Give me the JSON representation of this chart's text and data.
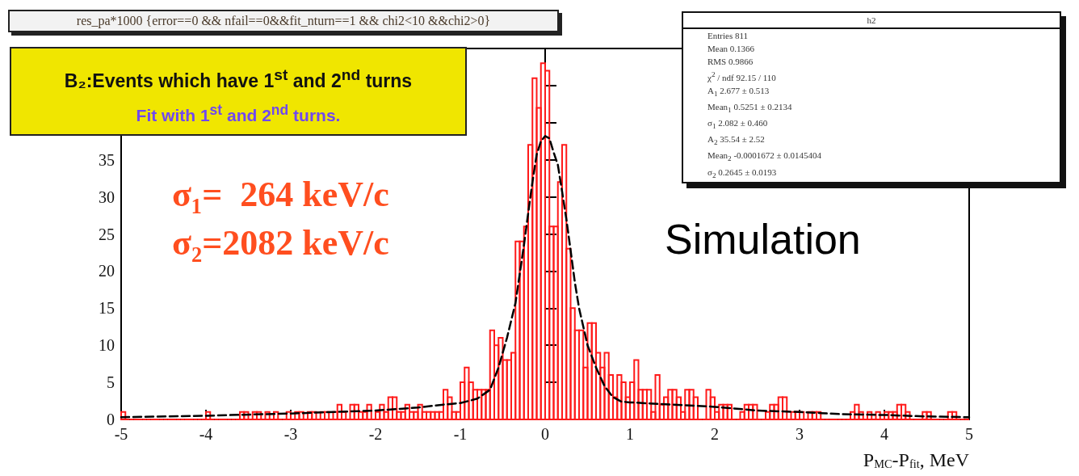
{
  "chart_data": {
    "type": "histogram",
    "title": "res_pa*1000 {error==0 && nfail==0&&fit_nturn==1 && chi2<10 &&chi2>0}",
    "xlabel": "P$_{MC}$-P$_{fit}$, MeV",
    "annotations": [
      "B₂:Events which have 1$^{st}$ and 2$^{nd}$ turns",
      "Fit with 1$^{st}$ and 2$^{nd}$ turns.",
      "σ₁=  264 keV/c",
      "σ₂=2082 keV/c",
      "Simulation",
      "h2",
      "Entries 811",
      "Mean 0.1366",
      "RMS 0.9866",
      "χ$^{2}$ / ndf 92.15 / 110",
      "A$_{1}$ 2.677 ± 0.513",
      "Mean$_{1}$ 0.5251 ± 0.2134",
      "σ$_{1}$ 2.082 ± 0.460",
      "A$_{2}$ 35.54 ± 2.52",
      "Mean$_{2}$ -0.0001672 ± 0.0145404",
      "σ$_{2}$ 0.2645 ± 0.0193"
    ],
    "bins": [
      -5,
      -4.95,
      -4.9,
      -4.85,
      -4.8,
      -4.75,
      -4.7,
      -4.65,
      -4.6,
      -4.55,
      -4.5,
      -4.45,
      -4.4,
      -4.35,
      -4.3,
      -4.25,
      -4.2,
      -4.15,
      -4.1,
      -4.05,
      -4,
      -3.95,
      -3.9,
      -3.85,
      -3.8,
      -3.75,
      -3.7,
      -3.65,
      -3.6,
      -3.55,
      -3.5,
      -3.45,
      -3.4,
      -3.35,
      -3.3,
      -3.25,
      -3.2,
      -3.15,
      -3.1,
      -3.05,
      -3,
      -2.95,
      -2.9,
      -2.85,
      -2.8,
      -2.75,
      -2.7,
      -2.65,
      -2.6,
      -2.55,
      -2.5,
      -2.45,
      -2.4,
      -2.35,
      -2.3,
      -2.25,
      -2.2,
      -2.15,
      -2.1,
      -2.05,
      -2,
      -1.95,
      -1.9,
      -1.85,
      -1.8,
      -1.75,
      -1.7,
      -1.65,
      -1.6,
      -1.55,
      -1.5,
      -1.45,
      -1.4,
      -1.35,
      -1.3,
      -1.25,
      -1.2,
      -1.15,
      -1.1,
      -1.05,
      -1,
      -0.95,
      -0.9,
      -0.85,
      -0.8,
      -0.75,
      -0.7,
      -0.65,
      -0.6,
      -0.55,
      -0.5,
      -0.45,
      -0.4,
      -0.35,
      -0.3,
      -0.25,
      -0.2,
      -0.15,
      -0.1,
      -0.05,
      0,
      0.05,
      0.1,
      0.15,
      0.2,
      0.25,
      0.3,
      0.35,
      0.4,
      0.45,
      0.5,
      0.55,
      0.6,
      0.65,
      0.7,
      0.75,
      0.8,
      0.85,
      0.9,
      0.95,
      1,
      1.05,
      1.1,
      1.15,
      1.2,
      1.25,
      1.3,
      1.35,
      1.4,
      1.45,
      1.5,
      1.55,
      1.6,
      1.65,
      1.7,
      1.75,
      1.8,
      1.85,
      1.9,
      1.95,
      2,
      2.05,
      2.1,
      2.15,
      2.2,
      2.25,
      2.3,
      2.35,
      2.4,
      2.45,
      2.5,
      2.55,
      2.6,
      2.65,
      2.7,
      2.75,
      2.8,
      2.85,
      2.9,
      2.95,
      3,
      3.05,
      3.1,
      3.15,
      3.2,
      3.25,
      3.3,
      3.35,
      3.4,
      3.45,
      3.5,
      3.55,
      3.6,
      3.65,
      3.7,
      3.75,
      3.8,
      3.85,
      3.9,
      3.95,
      4,
      4.05,
      4.1,
      4.15,
      4.2,
      4.25,
      4.3,
      4.35,
      4.4,
      4.45,
      4.5,
      4.55,
      4.6,
      4.65,
      4.7,
      4.75,
      4.8,
      4.85,
      4.9,
      4.95,
      5
    ],
    "series": [
      {
        "color": "#ff1a1a",
        "values": [
          1,
          0,
          0,
          0,
          0,
          0,
          0,
          0,
          0,
          0,
          0,
          0,
          0,
          0,
          0,
          0,
          0,
          0,
          0,
          0,
          1,
          0,
          0,
          0,
          0,
          0,
          0,
          0,
          1,
          1,
          0,
          1,
          1,
          0,
          1,
          0,
          1,
          0,
          0,
          1,
          0,
          1,
          1,
          0,
          1,
          1,
          0,
          1,
          1,
          0,
          1,
          2,
          1,
          0,
          2,
          2,
          1,
          1,
          2,
          0,
          1,
          2,
          1,
          3,
          3,
          1,
          1,
          2,
          1,
          1,
          2,
          1,
          1,
          1,
          1,
          1,
          4,
          3,
          1,
          1,
          5,
          7,
          5,
          4,
          4,
          4,
          4,
          12,
          10,
          11,
          8,
          8,
          9,
          24,
          24,
          26,
          37,
          46,
          42,
          48,
          47,
          26,
          26,
          32,
          37,
          23,
          15,
          12,
          12,
          7,
          13,
          13,
          9,
          7,
          9,
          6,
          3,
          6,
          5,
          3,
          5,
          8,
          4,
          4,
          4,
          1,
          6,
          2,
          3,
          4,
          4,
          3,
          1,
          4,
          4,
          3,
          0,
          0,
          4,
          3,
          1,
          2,
          2,
          2,
          0,
          0,
          1,
          2,
          2,
          2,
          0,
          0,
          1,
          2,
          2,
          3,
          3,
          0,
          1,
          1,
          1,
          0,
          1,
          1,
          1,
          0,
          0,
          0,
          0,
          0,
          0,
          0,
          1,
          2,
          1,
          0,
          1,
          0,
          1,
          0,
          1,
          1,
          1,
          2,
          2,
          1,
          0,
          0,
          0,
          1,
          1,
          0,
          0,
          0,
          0,
          1,
          1,
          0,
          0,
          0
        ]
      },
      {
        "type": "line",
        "color": "#000000",
        "line_style": "dashed",
        "x": [
          -5,
          -4,
          -3,
          -2,
          -1.5,
          -1.2,
          -1,
          -0.8,
          -0.65,
          -0.55,
          -0.45,
          -0.35,
          -0.3,
          -0.25,
          -0.2,
          -0.15,
          -0.1,
          -0.05,
          0,
          0.05,
          0.1,
          0.15,
          0.2,
          0.25,
          0.3,
          0.35,
          0.4,
          0.5,
          0.6,
          0.7,
          0.8,
          0.9,
          1,
          1.5,
          2,
          2.5,
          3,
          3.5,
          4,
          4.5,
          5
        ],
        "values": [
          0.3,
          0.5,
          0.8,
          1.2,
          1.6,
          2,
          2.2,
          2.8,
          4,
          7,
          11,
          15.7,
          19.6,
          23.5,
          27.8,
          32,
          35.7,
          37.5,
          38.2,
          37.9,
          36,
          34.3,
          30.7,
          27,
          22.8,
          18.5,
          15,
          10,
          7,
          4.5,
          3,
          2.4,
          2.3,
          2,
          1.7,
          1.2,
          1,
          0.7,
          0.6,
          0.4,
          0.3
        ]
      }
    ],
    "xlim": [
      -5,
      5
    ],
    "xticks": [
      -5,
      -4,
      -3,
      -2,
      -1,
      0,
      1,
      2,
      3,
      4,
      5
    ],
    "ylim": [
      0,
      50
    ],
    "yticks": [
      0,
      5,
      10,
      15,
      20,
      25,
      30,
      35,
      {
        "value": 40,
        "label": null
      },
      {
        "value": 45,
        "label": null
      }
    ]
  }
}
